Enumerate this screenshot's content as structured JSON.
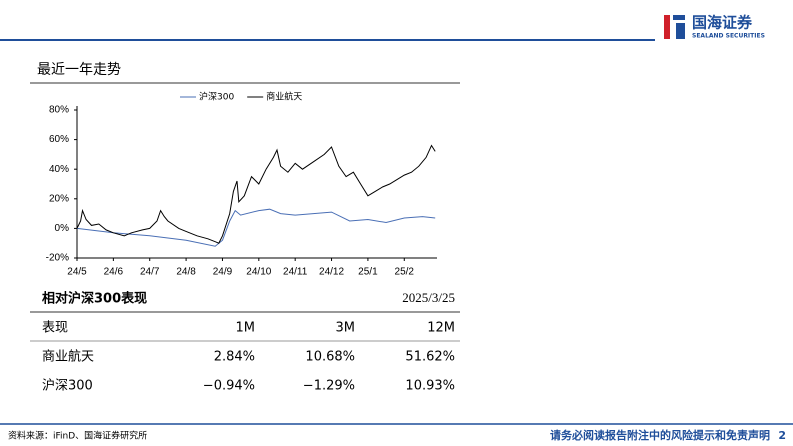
{
  "header": {
    "logo_text": "国海证券",
    "logo_sub": "SEALAND SECURITIES"
  },
  "section_title": "最近一年走势",
  "chart_data": {
    "type": "line",
    "series": [
      {
        "name": "沪深300",
        "color": "#4a6fb5",
        "x": [
          0,
          1,
          2,
          3,
          3.8,
          4,
          4.2,
          4.35,
          4.5,
          5,
          5.3,
          5.6,
          6,
          6.5,
          7,
          7.5,
          8,
          8.5,
          9,
          9.5,
          9.85
        ],
        "values": [
          0,
          -3,
          -5,
          -8,
          -12,
          -8,
          5,
          12,
          9,
          12,
          13,
          10,
          9,
          10,
          11,
          5,
          6,
          4,
          7,
          8,
          7
        ]
      },
      {
        "name": "商业航天",
        "color": "#000000",
        "x": [
          0,
          0.1,
          0.15,
          0.25,
          0.4,
          0.6,
          0.8,
          1,
          1.3,
          1.5,
          1.8,
          2,
          2.2,
          2.3,
          2.4,
          2.5,
          2.8,
          3,
          3.3,
          3.6,
          3.8,
          3.9,
          4,
          4.2,
          4.3,
          4.4,
          4.45,
          4.6,
          4.8,
          5,
          5.2,
          5.4,
          5.5,
          5.6,
          5.8,
          6,
          6.2,
          6.5,
          6.8,
          7,
          7.2,
          7.4,
          7.6,
          7.8,
          8,
          8.2,
          8.4,
          8.6,
          8.8,
          9,
          9.2,
          9.4,
          9.6,
          9.75,
          9.85
        ],
        "values": [
          0,
          5,
          12,
          6,
          2,
          3,
          -1,
          -3,
          -5,
          -3,
          -1,
          0,
          5,
          12,
          8,
          5,
          0,
          -2,
          -5,
          -7,
          -9,
          -10,
          -5,
          10,
          25,
          32,
          18,
          22,
          35,
          30,
          40,
          48,
          53,
          42,
          38,
          44,
          40,
          45,
          50,
          55,
          42,
          35,
          38,
          30,
          22,
          25,
          28,
          30,
          33,
          36,
          38,
          42,
          48,
          56,
          52
        ]
      }
    ],
    "xlim": [
      0,
      9.9
    ],
    "xticks": [
      {
        "value": 0,
        "label": "24/5"
      },
      {
        "value": 1,
        "label": "24/6"
      },
      {
        "value": 2,
        "label": "24/7"
      },
      {
        "value": 3,
        "label": "24/8"
      },
      {
        "value": 4,
        "label": "24/9"
      },
      {
        "value": 5,
        "label": "24/10"
      },
      {
        "value": 6,
        "label": "24/11"
      },
      {
        "value": 7,
        "label": "24/12"
      },
      {
        "value": 8,
        "label": "25/1"
      },
      {
        "value": 9,
        "label": "25/2"
      }
    ],
    "ylim": [
      -20,
      80
    ],
    "yticks": [
      {
        "value": -20,
        "label": "-20%"
      },
      {
        "value": 0,
        "label": "0%"
      },
      {
        "value": 20,
        "label": "20%"
      },
      {
        "value": 40,
        "label": "40%"
      },
      {
        "value": 60,
        "label": "60%"
      },
      {
        "value": 80,
        "label": "80%"
      }
    ]
  },
  "table": {
    "title": "相对沪深300表现",
    "date": "2025/3/25",
    "columns": [
      "表现",
      "1M",
      "3M",
      "12M"
    ],
    "rows": [
      [
        "商业航天",
        "2.84%",
        "10.68%",
        "51.62%"
      ],
      [
        "沪深300",
        "−0.94%",
        "−1.29%",
        "10.93%"
      ]
    ]
  },
  "footer": {
    "source": "资料来源：iFinD、国海证券研究所",
    "disclaimer": "请务必阅读报告附注中的风险提示和免责声明",
    "page": "2"
  }
}
